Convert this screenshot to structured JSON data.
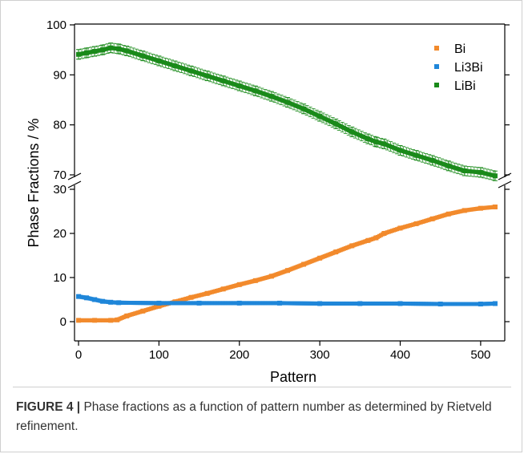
{
  "chart_data": {
    "type": "scatter",
    "xlabel": "Pattern",
    "ylabel": "Phase Fractions / %",
    "broken_y_axis": true,
    "xlim": [
      -5,
      530
    ],
    "x_ticks": [
      0,
      100,
      200,
      300,
      400,
      500
    ],
    "upper_panel": {
      "ylim": [
        69,
        100
      ],
      "y_ticks": [
        70,
        80,
        90,
        100
      ]
    },
    "lower_panel": {
      "ylim": [
        -3,
        30
      ],
      "y_ticks": [
        0,
        10,
        20,
        30
      ]
    },
    "legend_position": "top-right",
    "grid": false,
    "series": [
      {
        "name": "Bi",
        "color": "#f28a2c",
        "panel": "lower",
        "points": [
          [
            0,
            0.3
          ],
          [
            20,
            0.3
          ],
          [
            40,
            0.3
          ],
          [
            48,
            0.4
          ],
          [
            60,
            1.3
          ],
          [
            80,
            2.4
          ],
          [
            100,
            3.5
          ],
          [
            120,
            4.5
          ],
          [
            140,
            5.5
          ],
          [
            160,
            6.4
          ],
          [
            180,
            7.4
          ],
          [
            200,
            8.4
          ],
          [
            220,
            9.3
          ],
          [
            240,
            10.3
          ],
          [
            260,
            11.6
          ],
          [
            280,
            13.0
          ],
          [
            300,
            14.4
          ],
          [
            320,
            15.8
          ],
          [
            340,
            17.2
          ],
          [
            360,
            18.4
          ],
          [
            370,
            19.0
          ],
          [
            380,
            20.0
          ],
          [
            400,
            21.2
          ],
          [
            420,
            22.2
          ],
          [
            440,
            23.3
          ],
          [
            460,
            24.4
          ],
          [
            480,
            25.2
          ],
          [
            500,
            25.7
          ],
          [
            518,
            26.0
          ]
        ]
      },
      {
        "name": "Li3Bi",
        "color": "#1f86d9",
        "panel": "lower",
        "points": [
          [
            0,
            5.7
          ],
          [
            10,
            5.4
          ],
          [
            20,
            5.0
          ],
          [
            30,
            4.6
          ],
          [
            40,
            4.4
          ],
          [
            50,
            4.3
          ],
          [
            100,
            4.2
          ],
          [
            150,
            4.2
          ],
          [
            200,
            4.2
          ],
          [
            250,
            4.2
          ],
          [
            300,
            4.1
          ],
          [
            350,
            4.1
          ],
          [
            400,
            4.1
          ],
          [
            450,
            4.0
          ],
          [
            500,
            4.0
          ],
          [
            518,
            4.1
          ]
        ]
      },
      {
        "name": "LiBi",
        "color": "#1a8a1a",
        "panel": "upper",
        "error_bars": true,
        "points": [
          [
            0,
            94.1
          ],
          [
            10,
            94.4
          ],
          [
            20,
            94.7
          ],
          [
            30,
            95.0
          ],
          [
            40,
            95.4
          ],
          [
            50,
            95.2
          ],
          [
            60,
            94.8
          ],
          [
            80,
            93.8
          ],
          [
            100,
            92.8
          ],
          [
            120,
            91.8
          ],
          [
            140,
            90.8
          ],
          [
            160,
            89.8
          ],
          [
            180,
            88.8
          ],
          [
            200,
            87.8
          ],
          [
            220,
            86.8
          ],
          [
            240,
            85.7
          ],
          [
            260,
            84.5
          ],
          [
            280,
            83.2
          ],
          [
            300,
            81.7
          ],
          [
            320,
            80.2
          ],
          [
            340,
            78.6
          ],
          [
            360,
            77.2
          ],
          [
            370,
            76.6
          ],
          [
            380,
            76.2
          ],
          [
            400,
            74.9
          ],
          [
            420,
            73.9
          ],
          [
            440,
            72.9
          ],
          [
            460,
            71.8
          ],
          [
            480,
            70.8
          ],
          [
            500,
            70.5
          ],
          [
            518,
            69.8
          ]
        ]
      }
    ]
  },
  "caption": {
    "label": "FIGURE 4 |",
    "text": " Phase fractions as a function of pattern number as determined by Rietveld refinement."
  }
}
